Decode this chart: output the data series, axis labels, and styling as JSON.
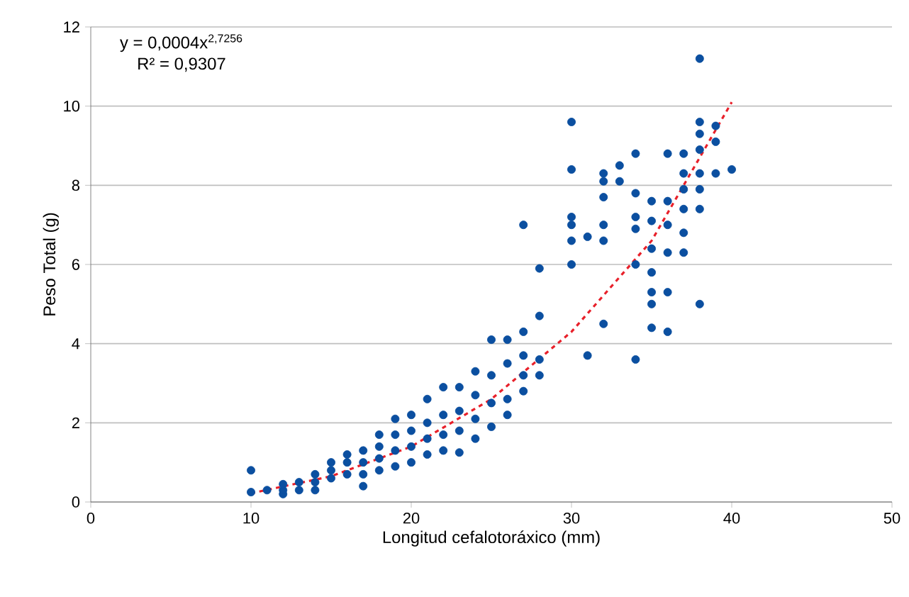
{
  "chart_data": {
    "type": "scatter",
    "xlabel": "Longitud cefalotoráxico (mm)",
    "ylabel": "Peso Total (g)",
    "xlim": [
      0,
      50
    ],
    "ylim": [
      0,
      12
    ],
    "xticks": [
      0,
      10,
      20,
      30,
      40,
      50
    ],
    "yticks": [
      0,
      2,
      4,
      6,
      8,
      10,
      12
    ],
    "grid": "y",
    "annotations": [
      "y = 0,0004x$^{2,7256}$",
      "R² = 0,9307"
    ],
    "series": [
      {
        "type": "scatter",
        "color": "#0b4fa0",
        "marker": "circle",
        "x": [
          10,
          10,
          11,
          12,
          12,
          12,
          13,
          13,
          14,
          14,
          14,
          15,
          15,
          15,
          16,
          16,
          16,
          17,
          17,
          17,
          17,
          18,
          18,
          18,
          18,
          19,
          19,
          19,
          19,
          20,
          20,
          20,
          20,
          21,
          21,
          21,
          21,
          22,
          22,
          22,
          22,
          23,
          23,
          23,
          23,
          24,
          24,
          24,
          24,
          25,
          25,
          25,
          25,
          26,
          26,
          26,
          26,
          27,
          27,
          27,
          27,
          27,
          28,
          28,
          28,
          28,
          30,
          30,
          30,
          30,
          30,
          30,
          31,
          31,
          32,
          32,
          32,
          32,
          32,
          32,
          33,
          33,
          34,
          34,
          34,
          34,
          34,
          34,
          35,
          35,
          35,
          35,
          35,
          35,
          35,
          36,
          36,
          36,
          36,
          36,
          36,
          37,
          37,
          37,
          37,
          37,
          37,
          38,
          38,
          38,
          38,
          38,
          38,
          38,
          38,
          39,
          39,
          39,
          40
        ],
        "values": [
          0.25,
          0.8,
          0.3,
          0.2,
          0.3,
          0.45,
          0.3,
          0.5,
          0.3,
          0.5,
          0.7,
          0.6,
          0.8,
          1.0,
          0.7,
          1.0,
          1.2,
          0.4,
          0.7,
          1.0,
          1.3,
          0.8,
          1.1,
          1.4,
          1.7,
          0.9,
          1.3,
          1.7,
          2.1,
          1.0,
          1.4,
          1.8,
          2.2,
          1.2,
          1.6,
          2.0,
          2.6,
          1.3,
          1.7,
          2.2,
          2.9,
          1.25,
          1.8,
          2.3,
          2.9,
          1.6,
          2.1,
          2.7,
          3.3,
          1.9,
          2.5,
          3.2,
          4.1,
          2.2,
          2.6,
          3.5,
          4.1,
          2.8,
          3.2,
          3.7,
          4.3,
          7.0,
          3.2,
          3.6,
          4.7,
          5.9,
          6.0,
          6.6,
          7.0,
          7.2,
          8.4,
          9.6,
          3.7,
          6.7,
          4.5,
          6.6,
          7.0,
          7.7,
          8.1,
          8.3,
          8.1,
          8.5,
          3.6,
          6.0,
          6.9,
          7.2,
          7.8,
          8.8,
          4.4,
          5.0,
          5.3,
          5.8,
          6.4,
          7.1,
          7.6,
          4.3,
          5.3,
          6.3,
          7.0,
          7.6,
          8.8,
          6.3,
          6.8,
          7.4,
          7.9,
          8.3,
          8.8,
          5.0,
          7.4,
          7.9,
          8.3,
          8.9,
          9.3,
          9.6,
          11.2,
          8.3,
          9.1,
          9.5,
          8.4
        ]
      },
      {
        "type": "line",
        "color": "#e8202a",
        "line_style": "dashed",
        "marker": "none",
        "x": [
          10,
          15,
          20,
          25,
          30,
          35,
          40
        ],
        "values": [
          0.22,
          0.65,
          1.4,
          2.6,
          4.3,
          6.6,
          10.1
        ]
      }
    ]
  }
}
